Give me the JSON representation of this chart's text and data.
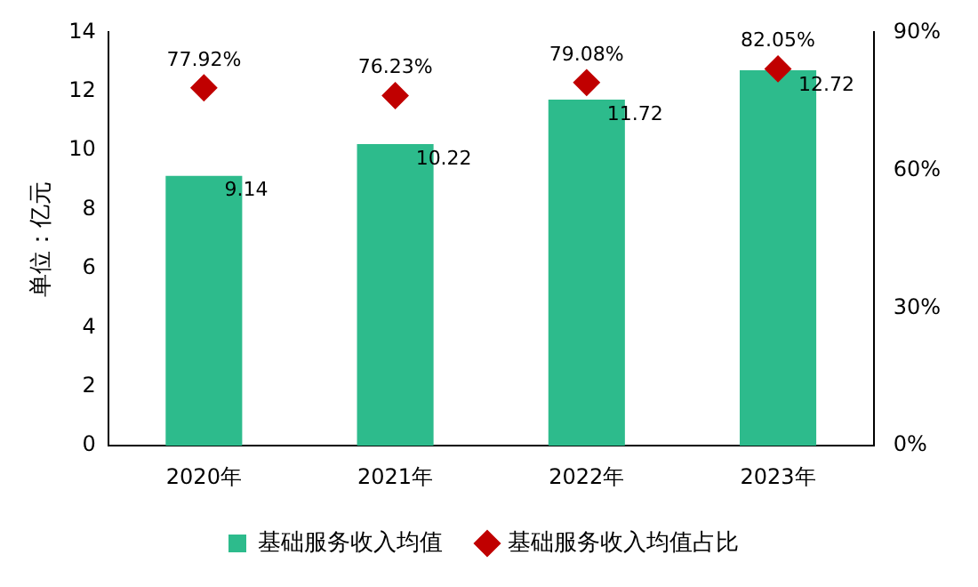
{
  "chart_data": {
    "type": "bar",
    "categories": [
      "2020年",
      "2021年",
      "2022年",
      "2023年"
    ],
    "ylabel": "单位：亿元",
    "ylim": [
      0,
      14
    ],
    "yticks": [
      0,
      2,
      4,
      6,
      8,
      10,
      12,
      14
    ],
    "y2lim": [
      0,
      90
    ],
    "y2ticks": [
      {
        "value": 0,
        "label": "0%"
      },
      {
        "value": 30,
        "label": "30%"
      },
      {
        "value": 60,
        "label": "60%"
      },
      {
        "value": 90,
        "label": "90%"
      }
    ],
    "grid": false,
    "legend": "bottom",
    "series": [
      {
        "name": "基础服务收入均值",
        "color": "#2dbb8c",
        "values": [
          9.14,
          10.22,
          11.72,
          12.72
        ],
        "value_labels": [
          "9.14",
          "10.22",
          "11.72",
          "12.72"
        ]
      },
      {
        "name": "基础服务收入均值占比",
        "type": "scatter",
        "axis": "y2",
        "marker": "diamond",
        "x": [
          "2020年",
          "2021年",
          "2022年",
          "2023年"
        ],
        "color": "#c00000",
        "values": [
          77.92,
          76.23,
          79.08,
          82.05
        ],
        "value_labels": [
          "77.92%",
          "76.23%",
          "79.08%",
          "82.05%"
        ]
      }
    ]
  }
}
